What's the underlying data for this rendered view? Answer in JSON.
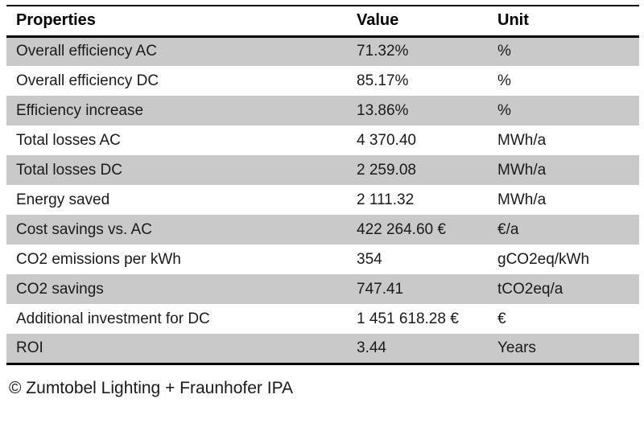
{
  "table": {
    "columns": [
      "Properties",
      "Value",
      "Unit"
    ],
    "rows": [
      {
        "property": "Overall efficiency AC",
        "value": "71.32%",
        "unit": "%"
      },
      {
        "property": "Overall efficiency DC",
        "value": "85.17%",
        "unit": "%"
      },
      {
        "property": "Efficiency increase",
        "value": "13.86%",
        "unit": "%"
      },
      {
        "property": "Total losses AC",
        "value": "4 370.40",
        "unit": "MWh/a"
      },
      {
        "property": "Total losses DC",
        "value": "2 259.08",
        "unit": "MWh/a"
      },
      {
        "property": "Energy saved",
        "value": "2 111.32",
        "unit": "MWh/a"
      },
      {
        "property": "Cost savings vs. AC",
        "value": "422 264.60 €",
        "unit": "€/a"
      },
      {
        "property": "CO2 emissions per kWh",
        "value": "354",
        "unit": "gCO2eq/kWh"
      },
      {
        "property": "CO2 savings",
        "value": "747.41",
        "unit": "tCO2eq/a"
      },
      {
        "property": "Additional investment for DC",
        "value": "1 451 618.28 €",
        "unit": "€"
      },
      {
        "property": "ROI",
        "value": "3.44",
        "unit": "Years"
      }
    ]
  },
  "footer": {
    "credit": "© Zumtobel Lighting + Fraunhofer IPA"
  },
  "colors": {
    "stripe": "#c9c9c9",
    "border": "#000000",
    "text": "#1a1a1a"
  }
}
